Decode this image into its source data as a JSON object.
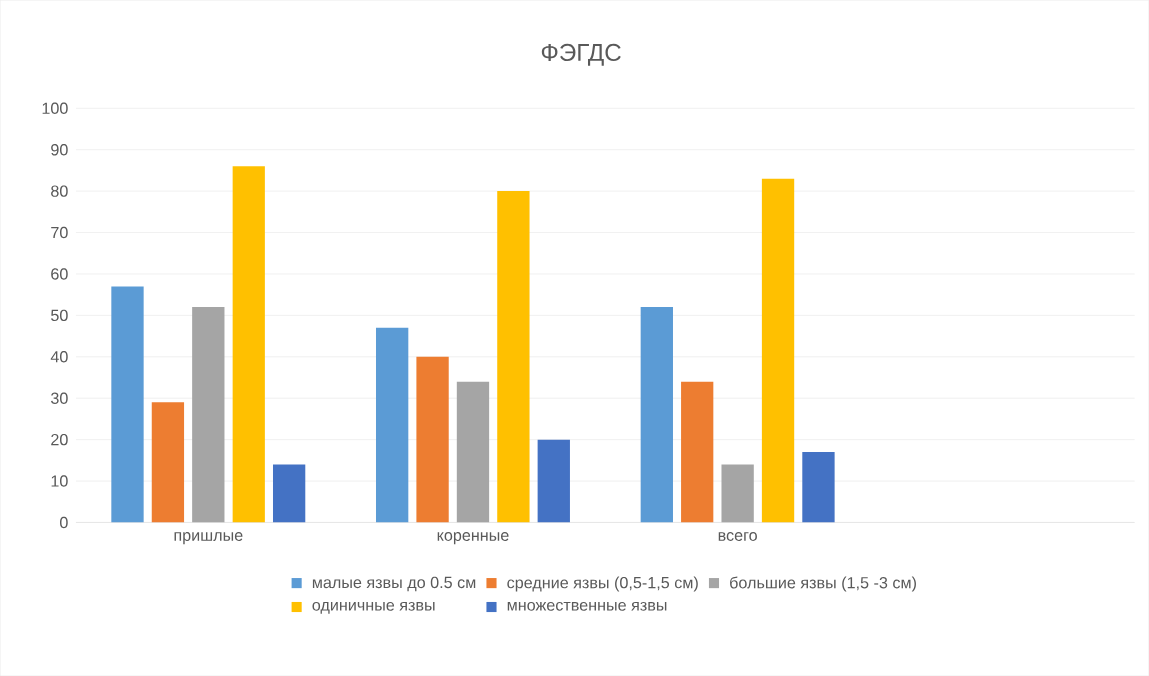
{
  "chart_data": {
    "type": "bar",
    "title": "ФЭГДС",
    "categories": [
      "пришлые",
      "коренные",
      "всего",
      null
    ],
    "series": [
      {
        "name": "малые язвы до 0.5 см",
        "color": "#5b9bd5",
        "values": [
          57,
          47,
          52,
          null
        ]
      },
      {
        "name": "средние язвы (0,5-1,5 см)",
        "color": "#ed7d31",
        "values": [
          29,
          40,
          34,
          null
        ]
      },
      {
        "name": "большие язвы (1,5 -3 см)",
        "color": "#a5a5a5",
        "values": [
          52,
          34,
          14,
          null
        ]
      },
      {
        "name": "одиничные язвы",
        "color": "#ffc000",
        "values": [
          86,
          80,
          83,
          null
        ]
      },
      {
        "name": "множественные язвы",
        "color": "#4472c4",
        "values": [
          14,
          20,
          17,
          null
        ]
      }
    ],
    "ylim": [
      0,
      100
    ],
    "yticks": [
      0,
      10,
      20,
      30,
      40,
      50,
      60,
      70,
      80,
      90,
      100
    ],
    "grid": "y",
    "legend": "bottom"
  }
}
